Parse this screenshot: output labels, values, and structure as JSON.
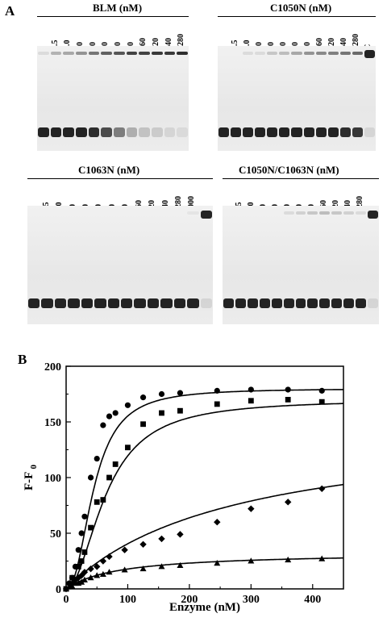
{
  "panel_a_label": "A",
  "panel_b_label": "B",
  "gels": [
    {
      "title": "BLM (nM)",
      "lanes": [
        "0",
        "2.5",
        "5.0",
        "10",
        "20",
        "30",
        "40",
        "80",
        "160",
        "320",
        "640",
        "1280"
      ],
      "lower_band_intensity": [
        1,
        1,
        1,
        1,
        0.95,
        0.8,
        0.55,
        0.3,
        0.2,
        0.15,
        0.1,
        0.08
      ],
      "upper_band_intensity": [
        0.1,
        0.3,
        0.35,
        0.45,
        0.6,
        0.7,
        0.75,
        0.85,
        0.85,
        0.9,
        0.9,
        0.95
      ]
    },
    {
      "title": "C1050N (nM)",
      "lanes": [
        "0",
        "2.5",
        "5.0",
        "10",
        "20",
        "30",
        "40",
        "80",
        "160",
        "320",
        "640",
        "1280",
        "C"
      ],
      "lower_band_intensity": [
        1,
        1,
        1,
        1,
        1,
        1,
        1,
        1,
        1,
        1,
        0.95,
        0.9,
        0.1
      ],
      "upper_band_intensity": [
        0,
        0,
        0.1,
        0.1,
        0.2,
        0.25,
        0.35,
        0.45,
        0.5,
        0.55,
        0.6,
        0.65,
        1
      ]
    },
    {
      "title": "C1063N (nM)",
      "lanes": [
        "0",
        "2.5",
        "5.0",
        "10",
        "20",
        "30",
        "40",
        "80",
        "160",
        "320",
        "640",
        "1280",
        "2000",
        "C"
      ],
      "lower_band_intensity": [
        1,
        1,
        1,
        1,
        1,
        1,
        1,
        1,
        1,
        1,
        1,
        1,
        1,
        0.1
      ],
      "upper_band_intensity": [
        0,
        0,
        0,
        0,
        0,
        0,
        0,
        0,
        0,
        0,
        0,
        0,
        0.05,
        1
      ]
    },
    {
      "title": "C1050N/C1063N (nM)",
      "lanes": [
        "0",
        "2.5",
        "5.0",
        "10",
        "20",
        "30",
        "40",
        "80",
        "160",
        "320",
        "640",
        "1280",
        "C"
      ],
      "lower_band_intensity": [
        1,
        1,
        1,
        1,
        1,
        1,
        1,
        1,
        1,
        1,
        1,
        1,
        0.1
      ],
      "upper_band_intensity": [
        0,
        0,
        0,
        0,
        0,
        0.1,
        0.15,
        0.2,
        0.25,
        0.2,
        0.15,
        0.1,
        1
      ]
    }
  ],
  "chart_data": {
    "type": "scatter",
    "xlabel": "Enzyme (nM)",
    "ylabel": "F-F0",
    "ylabel_main": "F-F",
    "ylabel_sub": "0",
    "xlim": [
      0,
      450
    ],
    "ylim": [
      0,
      200
    ],
    "xticks": [
      "0",
      "100",
      "200",
      "300",
      "400"
    ],
    "yticks": [
      "0",
      "50",
      "100",
      "150",
      "200"
    ],
    "grid": false,
    "series": [
      {
        "marker": "circle",
        "x": [
          0,
          5,
          10,
          15,
          20,
          25,
          30,
          40,
          50,
          60,
          70,
          80,
          100,
          125,
          155,
          185,
          245,
          300,
          360,
          415
        ],
        "y": [
          0,
          5,
          10,
          20,
          35,
          50,
          65,
          100,
          117,
          147,
          155,
          158,
          165,
          172,
          175,
          176,
          178,
          179,
          179,
          178
        ]
      },
      {
        "marker": "square",
        "x": [
          0,
          10,
          20,
          25,
          30,
          40,
          50,
          60,
          70,
          80,
          100,
          125,
          155,
          185,
          245,
          300,
          360,
          415
        ],
        "y": [
          0,
          10,
          20,
          25,
          33,
          55,
          78,
          80,
          100,
          112,
          127,
          148,
          158,
          160,
          166,
          169,
          170,
          168
        ]
      },
      {
        "marker": "diamond",
        "x": [
          0,
          10,
          15,
          20,
          25,
          30,
          40,
          50,
          60,
          70,
          95,
          125,
          155,
          185,
          245,
          300,
          360,
          415
        ],
        "y": [
          0,
          5,
          8,
          10,
          12,
          15,
          18,
          20,
          25,
          29,
          35,
          40,
          45,
          49,
          60,
          72,
          78,
          90
        ]
      },
      {
        "marker": "triangle",
        "x": [
          0,
          10,
          15,
          20,
          25,
          30,
          40,
          50,
          60,
          70,
          95,
          125,
          155,
          185,
          245,
          300,
          360,
          415
        ],
        "y": [
          0,
          2,
          5,
          5,
          6,
          8,
          10,
          12,
          13,
          15,
          17,
          18,
          20,
          21,
          23,
          25,
          26,
          27
        ]
      }
    ],
    "fits": [
      {
        "kind": "hill",
        "vmax": 180,
        "k": 45,
        "n": 2.3
      },
      {
        "kind": "hill",
        "vmax": 170,
        "k": 65,
        "n": 2.0
      },
      {
        "kind": "hyper",
        "vmax": 150,
        "k": 270
      },
      {
        "kind": "hyper",
        "vmax": 33,
        "k": 85
      }
    ]
  }
}
